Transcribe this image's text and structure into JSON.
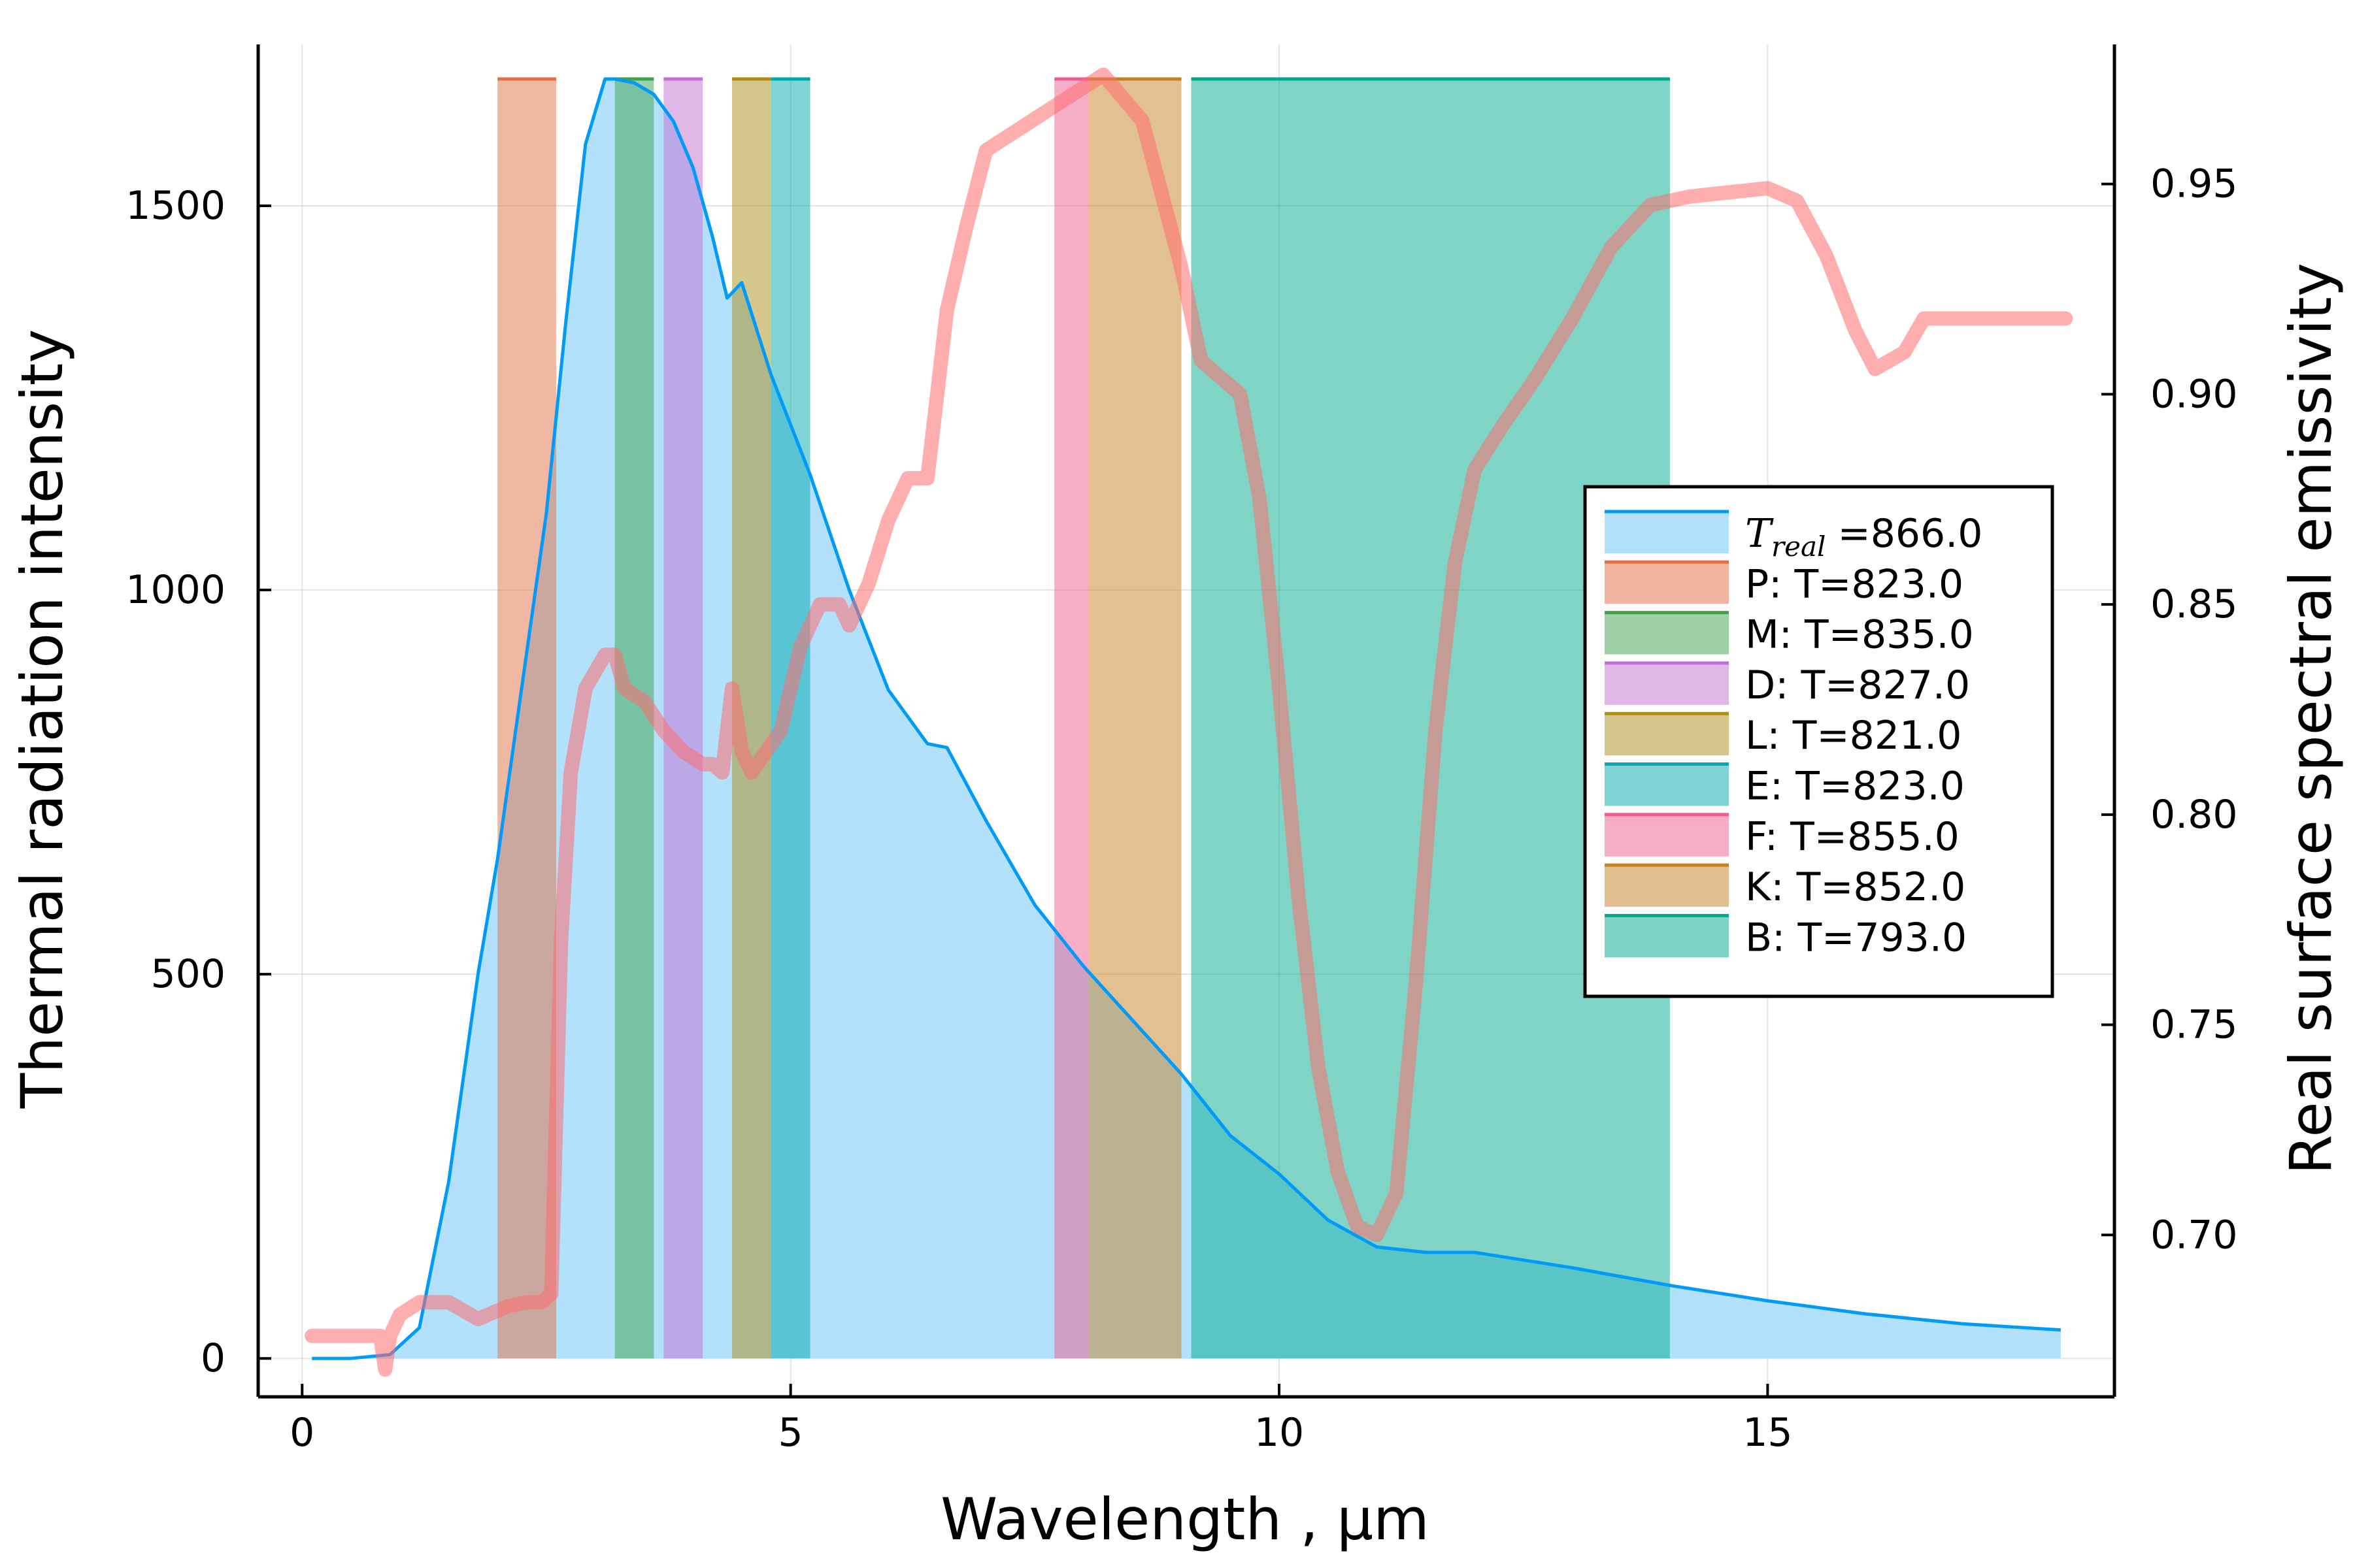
{
  "chart_data": {
    "type": "area",
    "xlabel": "Wavelength , μm",
    "ylabel": "Thermal radiation intensity",
    "y2label": "Real surface spectral emissivity",
    "xlim": [
      -0.45,
      18.55
    ],
    "ylim": [
      -50,
      1710
    ],
    "y2lim": [
      0.6615,
      0.9832
    ],
    "xticks": [
      0,
      5,
      10,
      15
    ],
    "xtick_labels": [
      "0",
      "5",
      "10",
      "15"
    ],
    "yticks": [
      0,
      500,
      1000,
      1500
    ],
    "ytick_labels": [
      "0",
      "500",
      "1000",
      "1500"
    ],
    "y2ticks": [
      0.7,
      0.75,
      0.8,
      0.85,
      0.9,
      0.95
    ],
    "y2tick_labels": [
      "0.70",
      "0.75",
      "0.80",
      "0.85",
      "0.90",
      "0.95"
    ],
    "grid": true,
    "legend_position": "right",
    "intensity": {
      "legend_name": "=866.0",
      "legend_math": "T",
      "legend_math_sub": "real",
      "color": "#009af9",
      "fill_color": "#b3e0fb",
      "x": [
        0.1,
        0.5,
        0.9,
        1.2,
        1.5,
        1.8,
        2.0,
        2.3,
        2.5,
        2.7,
        2.9,
        3.1,
        3.2,
        3.4,
        3.6,
        3.8,
        4.0,
        4.2,
        4.35,
        4.5,
        4.8,
        5.2,
        5.6,
        6.0,
        6.4,
        6.6,
        7.0,
        7.5,
        8.0,
        8.5,
        9.0,
        9.5,
        10.0,
        10.5,
        11.0,
        11.5,
        12.0,
        13.0,
        14.0,
        15.0,
        16.0,
        17.0,
        18.0
      ],
      "y": [
        0,
        0,
        5,
        40,
        230,
        500,
        650,
        920,
        1100,
        1350,
        1580,
        1665,
        1665,
        1660,
        1645,
        1610,
        1550,
        1460,
        1380,
        1400,
        1280,
        1150,
        1000,
        870,
        800,
        795,
        700,
        590,
        510,
        440,
        370,
        290,
        240,
        180,
        145,
        138,
        138,
        118,
        95,
        75,
        58,
        45,
        37
      ]
    },
    "emissivity": {
      "color": "#ffb3b4",
      "x": [
        0.1,
        0.8,
        0.85,
        0.9,
        1.0,
        1.2,
        1.5,
        1.8,
        1.9,
        2.1,
        2.3,
        2.45,
        2.55,
        2.65,
        2.75,
        2.9,
        3.1,
        3.2,
        3.3,
        3.5,
        3.7,
        3.9,
        4.1,
        4.2,
        4.3,
        4.4,
        4.5,
        4.6,
        4.75,
        4.9,
        5.1,
        5.3,
        5.5,
        5.6,
        5.8,
        6.0,
        6.2,
        6.4,
        6.6,
        6.8,
        7.0,
        7.4,
        7.8,
        8.2,
        8.6,
        9.0,
        9.2,
        9.4,
        9.6,
        9.8,
        10.0,
        10.2,
        10.4,
        10.6,
        10.8,
        11.0,
        11.2,
        11.4,
        11.6,
        11.8,
        12.0,
        12.3,
        12.6,
        13.0,
        13.4,
        13.8,
        14.2,
        14.6,
        15.0,
        15.3,
        15.6,
        15.9,
        16.1,
        16.4,
        16.6,
        17.0,
        17.5,
        18.05
      ],
      "y": [
        0.676,
        0.676,
        0.668,
        0.676,
        0.681,
        0.684,
        0.684,
        0.68,
        0.681,
        0.683,
        0.684,
        0.684,
        0.686,
        0.77,
        0.81,
        0.83,
        0.838,
        0.838,
        0.83,
        0.827,
        0.82,
        0.815,
        0.812,
        0.812,
        0.81,
        0.83,
        0.815,
        0.81,
        0.815,
        0.82,
        0.84,
        0.85,
        0.85,
        0.845,
        0.855,
        0.87,
        0.88,
        0.88,
        0.92,
        0.94,
        0.958,
        0.964,
        0.97,
        0.976,
        0.965,
        0.93,
        0.908,
        0.904,
        0.9,
        0.875,
        0.83,
        0.78,
        0.74,
        0.715,
        0.702,
        0.7,
        0.71,
        0.76,
        0.82,
        0.86,
        0.882,
        0.893,
        0.903,
        0.918,
        0.935,
        0.945,
        0.947,
        0.948,
        0.949,
        0.946,
        0.933,
        0.915,
        0.906,
        0.91,
        0.918,
        0.918,
        0.918,
        0.918
      ]
    },
    "bands": [
      {
        "label": "P: T=823.0",
        "start": 2.0,
        "end": 2.6,
        "color": "#e26f46",
        "fill": "#f0b5a1"
      },
      {
        "label": "M: T=835.0",
        "start": 3.2,
        "end": 3.6,
        "color": "#3da44d",
        "fill": "#9ed1a6"
      },
      {
        "label": "D: T=827.0",
        "start": 3.7,
        "end": 4.1,
        "color": "#c271d2",
        "fill": "#e0b8e8"
      },
      {
        "label": "L: T=821.0",
        "start": 4.4,
        "end": 4.8,
        "color": "#ac8e18",
        "fill": "#d5c68b"
      },
      {
        "label": "E: T=823.0",
        "start": 4.8,
        "end": 5.2,
        "color": "#00a9ad",
        "fill": "#7fd3d5"
      },
      {
        "label": "F: T=855.0",
        "start": 7.7,
        "end": 8.05,
        "color": "#ed5d92",
        "fill": "#f6adc8"
      },
      {
        "label": "K: T=852.0",
        "start": 8.05,
        "end": 9.0,
        "color": "#c68125",
        "fill": "#e2bf91"
      },
      {
        "label": "B: T=793.0",
        "start": 9.1,
        "end": 14.0,
        "color": "#00a98d",
        "fill": "#7fd3c5"
      }
    ],
    "band_top": 1665
  }
}
